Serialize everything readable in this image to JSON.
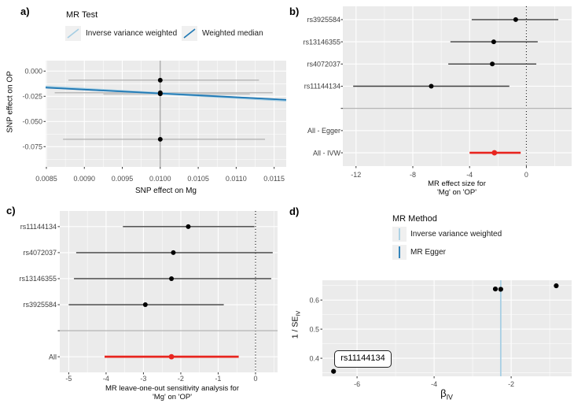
{
  "colors": {
    "panel_bg": "#EBEBEB",
    "grid": "#FFFFFF",
    "legend_key_bg": "#F0F0F0",
    "ivw_light_blue": "#A6CEE3",
    "dark_blue": "#1F78B4",
    "highlight_red": "#E8251F",
    "point_black": "#000000",
    "scatter_errbar_gray": "#A9A9A9",
    "forest_errbar_gray": "#3F3F3F",
    "separator_gray": "#ABABAB",
    "tick_text_gray": "#4D4D4D"
  },
  "chart_data": [
    {
      "id": "a",
      "type": "scatter",
      "panel_label": "a)",
      "legend_title": "MR Test",
      "legend": [
        {
          "label": "Inverse variance weighted",
          "color": "#A6CEE3"
        },
        {
          "label": "Weighted median",
          "color": "#1F78B4"
        }
      ],
      "xlabel": "SNP effect on Mg",
      "ylabel": "SNP effect on OP",
      "xlim": [
        0.00849,
        0.011659
      ],
      "ylim": [
        -0.0951,
        0.0104
      ],
      "xticks": [
        0.0085,
        0.009,
        0.0095,
        0.01,
        0.0105,
        0.011,
        0.0115
      ],
      "xtick_labels": [
        "0.0085",
        "0.0090",
        "0.0095",
        "0.0100",
        "0.0105",
        "0.0110",
        "0.0115"
      ],
      "yticks": [
        0,
        -0.025,
        -0.05,
        -0.075
      ],
      "ytick_labels": [
        "0.000",
        "-0.025",
        "-0.050",
        "-0.075"
      ],
      "vline_x": 0.01,
      "regression_lines": [
        {
          "method": "Inverse variance weighted",
          "color": "#A6CEE3",
          "x1": 0.00849,
          "y1": -0.0157,
          "x2": 0.011659,
          "y2": -0.0291,
          "width": 3
        },
        {
          "method": "Weighted median",
          "color": "#1F78B4",
          "x1": 0.00849,
          "y1": -0.0164,
          "x2": 0.011659,
          "y2": -0.0285,
          "width": 1.8
        }
      ],
      "points": [
        {
          "x": 0.01,
          "y": -0.009,
          "xlo": 0.00879,
          "xhi": 0.0113,
          "bar_style": "thin"
        },
        {
          "x": 0.01,
          "y": -0.0215,
          "xlo": 0.00861,
          "xhi": 0.01148,
          "bar_style": "thin"
        },
        {
          "x": 0.01,
          "y": -0.0225,
          "xlo": 0.00925,
          "xhi": 0.01118,
          "bar_style": "thick"
        },
        {
          "x": 0.01,
          "y": -0.0677,
          "xlo": 0.00872,
          "xhi": 0.01138,
          "bar_style": "thin"
        }
      ]
    },
    {
      "id": "b",
      "type": "forest",
      "panel_label": "b)",
      "xlabel_lines": [
        "MR effect size for",
        "'Mg' on 'OP'"
      ],
      "xlim": [
        -12.93,
        3.19
      ],
      "xticks": [
        -12,
        -8,
        -4,
        0
      ],
      "vline_x": 0,
      "rows": [
        {
          "label": "rs3925584",
          "est": -0.75,
          "lo": -3.85,
          "hi": 2.25
        },
        {
          "label": "rs13146355",
          "est": -2.3,
          "lo": -5.35,
          "hi": 0.8
        },
        {
          "label": "rs4072037",
          "est": -2.4,
          "lo": -5.5,
          "hi": 0.7
        },
        {
          "label": "rs11144134",
          "est": -6.7,
          "lo": -12.2,
          "hi": -1.2
        },
        {
          "label": "",
          "separator": true
        },
        {
          "label": "All - Egger",
          "est": null
        },
        {
          "label": "All - IVW",
          "est": -2.25,
          "lo": -4.0,
          "hi": -0.4,
          "highlight": true
        }
      ]
    },
    {
      "id": "c",
      "type": "forest",
      "panel_label": "c)",
      "xlabel_lines": [
        "MR leave-one-out sensitivity analysis for",
        "'Mg' on 'OP'"
      ],
      "xlim": [
        -5.24,
        0.59
      ],
      "xticks": [
        -5,
        -4,
        -3,
        -2,
        -1,
        0
      ],
      "vline_x": 0,
      "rows": [
        {
          "label": "rs11144134",
          "est": -1.8,
          "lo": -3.55,
          "hi": -0.03
        },
        {
          "label": "rs4072037",
          "est": -2.2,
          "lo": -4.8,
          "hi": 0.46
        },
        {
          "label": "rs13146355",
          "est": -2.25,
          "lo": -4.86,
          "hi": 0.42
        },
        {
          "label": "rs3925584",
          "est": -2.95,
          "lo": -5.0,
          "hi": -0.85
        },
        {
          "label": "",
          "separator": true
        },
        {
          "label": "All",
          "est": -2.25,
          "lo": -4.04,
          "hi": -0.45,
          "highlight": true
        }
      ]
    },
    {
      "id": "d",
      "type": "funnel",
      "panel_label": "d)",
      "legend_title": "MR Method",
      "legend": [
        {
          "label": "Inverse variance weighted",
          "color": "#A6CEE3"
        },
        {
          "label": "MR Egger",
          "color": "#1F78B4"
        }
      ],
      "xlabel_base": "β",
      "xlabel_sub": "IV",
      "ylabel_base": "1 / SE",
      "ylabel_sub": "IV",
      "xlim": [
        -6.9,
        -0.43
      ],
      "ylim": [
        0.338,
        0.668
      ],
      "xticks": [
        -6,
        -4,
        -2
      ],
      "yticks": [
        0.4,
        0.5,
        0.6
      ],
      "ytick_labels": [
        "0.4",
        "0.5",
        "0.6"
      ],
      "method_lines": [
        {
          "method": "Inverse variance weighted",
          "x": -2.27,
          "color": "#A6CEE3"
        }
      ],
      "points": [
        {
          "x": -2.41,
          "y": 0.638
        },
        {
          "x": -2.27,
          "y": 0.637
        },
        {
          "x": -0.83,
          "y": 0.649
        },
        {
          "x": -6.61,
          "y": 0.355,
          "label": "rs11144134"
        }
      ],
      "annotation": {
        "label": "rs11144134"
      }
    }
  ]
}
